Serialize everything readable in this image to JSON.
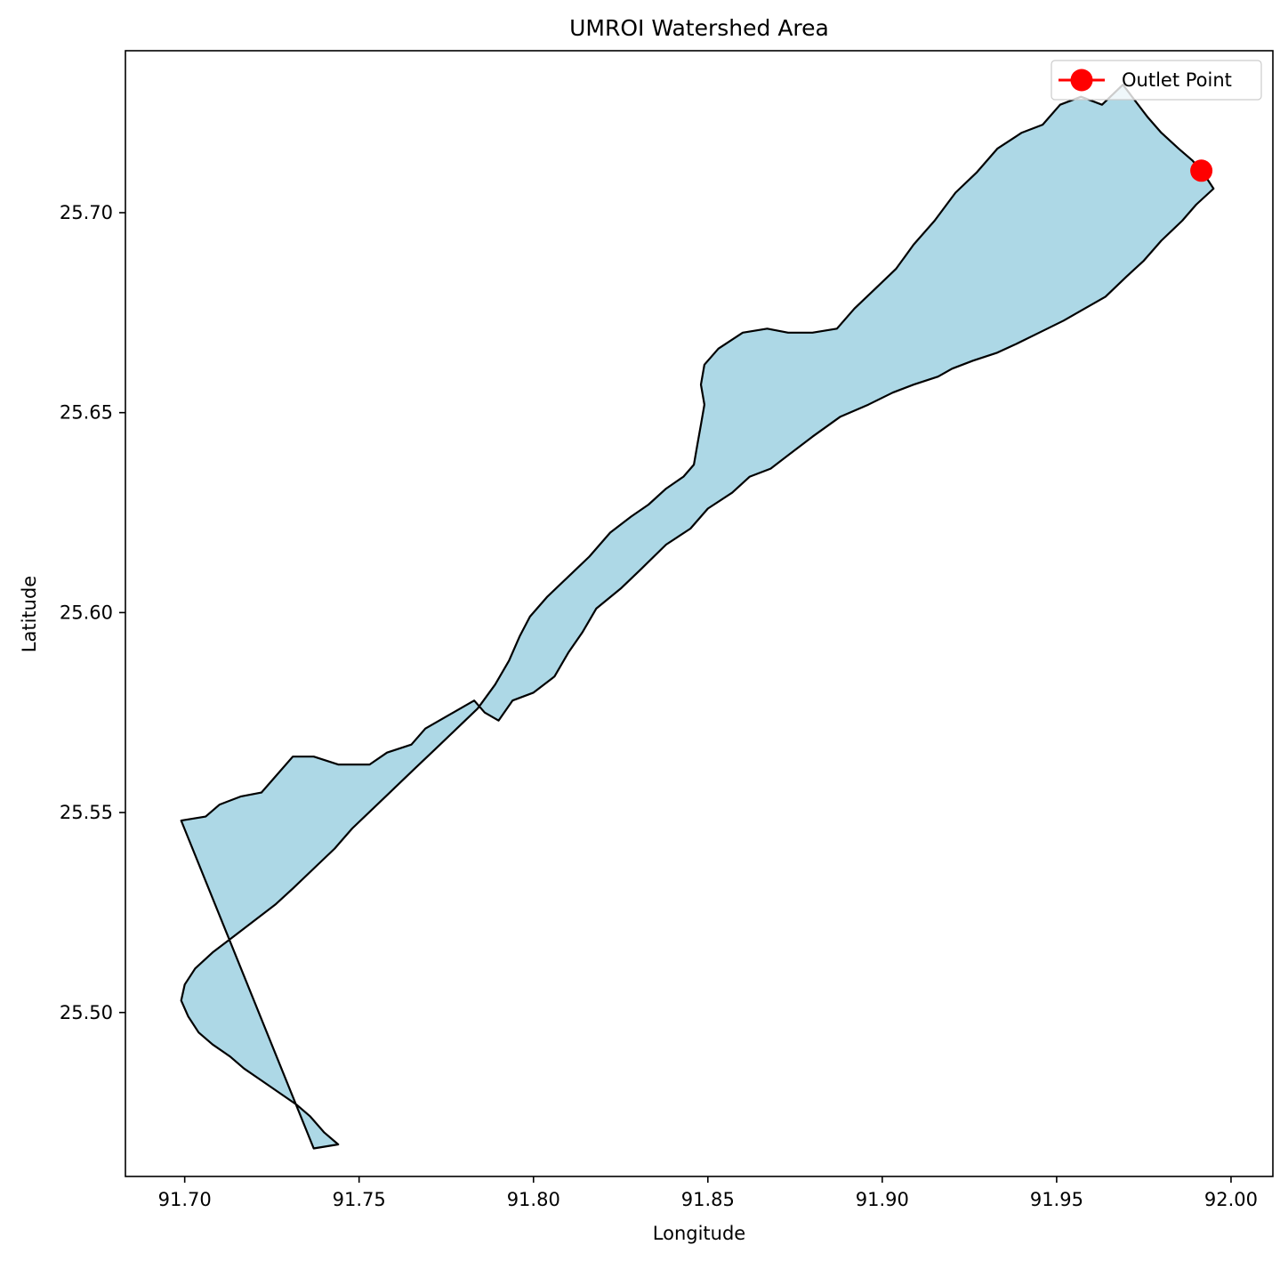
{
  "chart_data": {
    "type": "map",
    "title": "UMROI Watershed Area",
    "xlabel": "Longitude",
    "ylabel": "Latitude",
    "xlim": [
      91.683,
      92.012
    ],
    "ylim": [
      25.459,
      25.7405
    ],
    "x_ticks": [
      "91.70",
      "91.75",
      "91.80",
      "91.85",
      "91.90",
      "91.95",
      "92.00"
    ],
    "x_tick_values": [
      91.7,
      91.75,
      91.8,
      91.85,
      91.9,
      91.95,
      92.0
    ],
    "y_ticks": [
      "25.50",
      "25.55",
      "25.60",
      "25.65",
      "25.70"
    ],
    "y_tick_values": [
      25.5,
      25.55,
      25.6,
      25.65,
      25.7
    ],
    "grid": false,
    "legend": {
      "placement": "top-right",
      "entries": [
        {
          "label": "Outlet Point",
          "color": "#ff0000",
          "marker": "circle"
        }
      ]
    },
    "watershed": {
      "fill": "#add8e6",
      "edge": "#000000",
      "boundary": [
        [
          91.699,
          25.548
        ],
        [
          91.706,
          25.549
        ],
        [
          91.71,
          25.552
        ],
        [
          91.716,
          25.554
        ],
        [
          91.722,
          25.555
        ],
        [
          91.726,
          25.559
        ],
        [
          91.731,
          25.564
        ],
        [
          91.737,
          25.564
        ],
        [
          91.744,
          25.562
        ],
        [
          91.753,
          25.562
        ],
        [
          91.758,
          25.565
        ],
        [
          91.765,
          25.567
        ],
        [
          91.769,
          25.571
        ],
        [
          91.777,
          25.575
        ],
        [
          91.783,
          25.578
        ],
        [
          91.786,
          25.575
        ],
        [
          91.79,
          25.573
        ],
        [
          91.794,
          25.578
        ],
        [
          91.8,
          25.58
        ],
        [
          91.806,
          25.584
        ],
        [
          91.81,
          25.59
        ],
        [
          91.814,
          25.595
        ],
        [
          91.818,
          25.601
        ],
        [
          91.825,
          25.606
        ],
        [
          91.831,
          25.611
        ],
        [
          91.838,
          25.617
        ],
        [
          91.845,
          25.621
        ],
        [
          91.85,
          25.626
        ],
        [
          91.857,
          25.63
        ],
        [
          91.862,
          25.634
        ],
        [
          91.868,
          25.636
        ],
        [
          91.874,
          25.64
        ],
        [
          91.88,
          25.644
        ],
        [
          91.888,
          25.649
        ],
        [
          91.896,
          25.652
        ],
        [
          91.903,
          25.655
        ],
        [
          91.909,
          25.657
        ],
        [
          91.916,
          25.659
        ],
        [
          91.92,
          25.661
        ],
        [
          91.926,
          25.663
        ],
        [
          91.933,
          25.665
        ],
        [
          91.938,
          25.667
        ],
        [
          91.945,
          25.67
        ],
        [
          91.952,
          25.673
        ],
        [
          91.958,
          25.676
        ],
        [
          91.964,
          25.679
        ],
        [
          91.97,
          25.684
        ],
        [
          91.975,
          25.688
        ],
        [
          91.98,
          25.693
        ],
        [
          91.986,
          25.698
        ],
        [
          91.99,
          25.702
        ],
        [
          91.995,
          25.706
        ],
        [
          91.992,
          25.71
        ],
        [
          91.989,
          25.713
        ],
        [
          91.985,
          25.716
        ],
        [
          91.98,
          25.72
        ],
        [
          91.976,
          25.724
        ],
        [
          91.969,
          25.732
        ],
        [
          91.963,
          25.727
        ],
        [
          91.957,
          25.729
        ],
        [
          91.951,
          25.727
        ],
        [
          91.946,
          25.722
        ],
        [
          91.94,
          25.72
        ],
        [
          91.933,
          25.716
        ],
        [
          91.927,
          25.71
        ],
        [
          91.921,
          25.705
        ],
        [
          91.915,
          25.698
        ],
        [
          91.909,
          25.692
        ],
        [
          91.904,
          25.686
        ],
        [
          91.898,
          25.681
        ],
        [
          91.892,
          25.676
        ],
        [
          91.887,
          25.671
        ],
        [
          91.88,
          25.67
        ],
        [
          91.873,
          25.67
        ],
        [
          91.867,
          25.671
        ],
        [
          91.86,
          25.67
        ],
        [
          91.853,
          25.666
        ],
        [
          91.849,
          25.662
        ],
        [
          91.848,
          25.657
        ],
        [
          91.849,
          25.652
        ],
        [
          91.848,
          25.647
        ],
        [
          91.847,
          25.642
        ],
        [
          91.846,
          25.637
        ],
        [
          91.843,
          25.634
        ],
        [
          91.838,
          25.631
        ],
        [
          91.833,
          25.627
        ],
        [
          91.828,
          25.624
        ],
        [
          91.822,
          25.62
        ],
        [
          91.816,
          25.614
        ],
        [
          91.81,
          25.609
        ],
        [
          91.804,
          25.604
        ],
        [
          91.799,
          25.599
        ],
        [
          91.796,
          25.594
        ],
        [
          91.793,
          25.588
        ],
        [
          91.789,
          25.582
        ],
        [
          91.784,
          25.576
        ],
        [
          91.778,
          25.571
        ],
        [
          91.772,
          25.566
        ],
        [
          91.766,
          25.561
        ],
        [
          91.76,
          25.556
        ],
        [
          91.754,
          25.551
        ],
        [
          91.748,
          25.546
        ],
        [
          91.743,
          25.541
        ],
        [
          91.737,
          25.536
        ],
        [
          91.731,
          25.531
        ],
        [
          91.726,
          25.527
        ],
        [
          91.72,
          25.523
        ],
        [
          91.714,
          25.519
        ],
        [
          91.708,
          25.515
        ],
        [
          91.703,
          25.511
        ],
        [
          91.7,
          25.507
        ],
        [
          91.699,
          25.503
        ],
        [
          91.701,
          25.499
        ],
        [
          91.704,
          25.495
        ],
        [
          91.708,
          25.492
        ],
        [
          91.713,
          25.489
        ],
        [
          91.717,
          25.486
        ],
        [
          91.722,
          25.483
        ],
        [
          91.727,
          25.48
        ],
        [
          91.732,
          25.477
        ],
        [
          91.736,
          25.474
        ],
        [
          91.74,
          25.47
        ],
        [
          91.744,
          25.467
        ],
        [
          91.737,
          25.466
        ]
      ]
    },
    "outlet_point": {
      "label": "Outlet Point",
      "lon": 91.9915,
      "lat": 25.7105,
      "color": "#ff0000"
    }
  }
}
